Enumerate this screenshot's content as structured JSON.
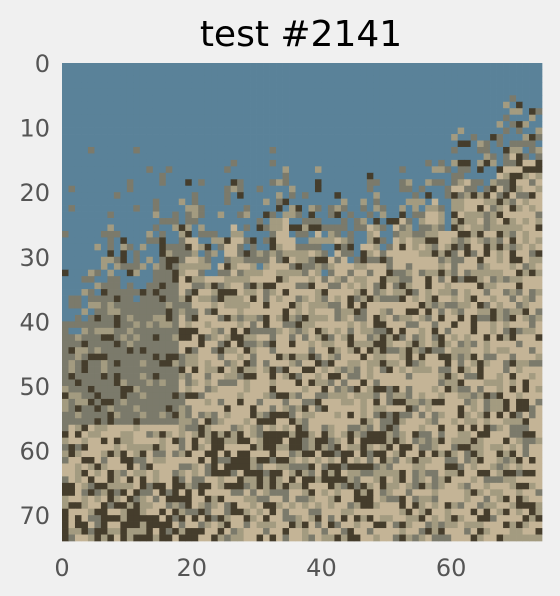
{
  "chart_data": {
    "type": "heatmap",
    "title": "test #2141",
    "xlabel": "",
    "ylabel": "",
    "xlim": [
      0,
      74
    ],
    "ylim": [
      0,
      74
    ],
    "y_inverted": true,
    "x_ticks": [
      0,
      20,
      40,
      60
    ],
    "y_ticks": [
      0,
      10,
      20,
      30,
      40,
      50,
      60,
      70
    ],
    "grid": false,
    "legend": "none",
    "colormap": [
      "#5a8299",
      "#7b7a6b",
      "#a39b80",
      "#c4b496",
      "#453d2c"
    ],
    "regions_description_note": "",
    "cells_grid_size": [
      74,
      74
    ]
  },
  "colors": {
    "background": "#f0f0f0",
    "sky": "#5a8299",
    "haze": "#7b7a6b",
    "sand": "#c4b496",
    "mid": "#a39b80",
    "dark": "#453d2c"
  }
}
